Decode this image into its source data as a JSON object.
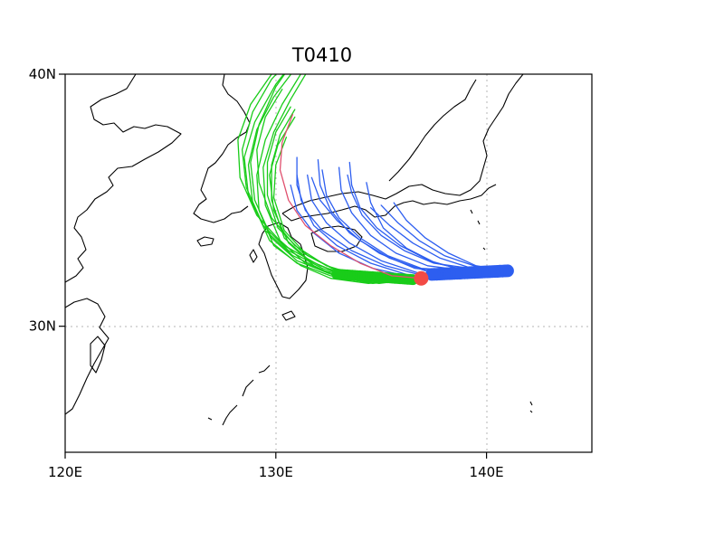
{
  "title": "T0410",
  "map": {
    "lon_range": [
      120,
      145
    ],
    "lat_range": [
      25,
      40
    ],
    "x_ticks": [
      {
        "value": 120,
        "label": "120E"
      },
      {
        "value": 130,
        "label": "130E"
      },
      {
        "value": 140,
        "label": "140E"
      }
    ],
    "y_ticks": [
      {
        "value": 30,
        "label": "30N"
      },
      {
        "value": 40,
        "label": "40N"
      }
    ],
    "gridlines": {
      "lon": [
        130,
        140
      ],
      "lat": [
        30
      ],
      "style": "dotted"
    }
  },
  "colors": {
    "ensemble_a": "#19cc19",
    "ensemble_b": "#2d5ef0",
    "best_track": "#e0506e",
    "start_marker": "#f24a45",
    "coast": "#000000"
  },
  "start_point": {
    "lon": 136.9,
    "lat": 31.9
  },
  "tracks": {
    "best_track": [
      [
        136.9,
        31.9
      ],
      [
        135.5,
        32.0
      ],
      [
        134.0,
        32.5
      ],
      [
        132.6,
        33.2
      ],
      [
        131.4,
        34.0
      ],
      [
        130.6,
        35.0
      ],
      [
        130.2,
        36.2
      ],
      [
        130.3,
        37.3
      ],
      [
        130.8,
        38.4
      ]
    ],
    "green": [
      [
        [
          136.9,
          31.9
        ],
        [
          134.5,
          31.8
        ],
        [
          132.5,
          32.1
        ],
        [
          131.0,
          32.6
        ],
        [
          129.8,
          33.5
        ],
        [
          129.0,
          35.0
        ],
        [
          128.8,
          36.5
        ],
        [
          129.2,
          38.0
        ],
        [
          130.0,
          39.5
        ],
        [
          131.0,
          40.7
        ]
      ],
      [
        [
          136.9,
          31.9
        ],
        [
          134.6,
          31.8
        ],
        [
          132.3,
          32.2
        ],
        [
          130.8,
          32.8
        ],
        [
          129.5,
          33.8
        ],
        [
          128.7,
          35.2
        ],
        [
          128.5,
          36.7
        ],
        [
          129.0,
          38.1
        ],
        [
          130.0,
          39.6
        ],
        [
          131.3,
          41.0
        ]
      ],
      [
        [
          136.9,
          31.9
        ],
        [
          134.4,
          31.7
        ],
        [
          132.6,
          31.9
        ],
        [
          131.2,
          32.4
        ],
        [
          129.9,
          33.2
        ],
        [
          129.2,
          34.6
        ],
        [
          129.1,
          36.0
        ],
        [
          129.5,
          37.4
        ],
        [
          130.3,
          38.8
        ],
        [
          131.4,
          40.3
        ]
      ],
      [
        [
          136.9,
          31.9
        ],
        [
          134.7,
          31.8
        ],
        [
          132.8,
          32.0
        ],
        [
          131.4,
          32.5
        ],
        [
          130.2,
          33.4
        ],
        [
          129.5,
          34.8
        ],
        [
          129.4,
          36.3
        ],
        [
          129.9,
          37.7
        ],
        [
          130.7,
          39.0
        ],
        [
          131.7,
          40.4
        ]
      ],
      [
        [
          136.9,
          31.9
        ],
        [
          134.8,
          31.8
        ],
        [
          133.0,
          32.1
        ],
        [
          131.6,
          32.6
        ],
        [
          130.4,
          33.5
        ],
        [
          129.8,
          35.0
        ],
        [
          129.8,
          36.4
        ],
        [
          130.2,
          37.6
        ],
        [
          130.9,
          38.6
        ]
      ],
      [
        [
          136.9,
          31.9
        ],
        [
          134.3,
          31.8
        ],
        [
          132.2,
          32.3
        ],
        [
          130.6,
          33.0
        ],
        [
          129.4,
          34.0
        ],
        [
          128.6,
          35.5
        ],
        [
          128.4,
          37.0
        ],
        [
          128.9,
          38.5
        ],
        [
          129.8,
          39.8
        ],
        [
          130.9,
          40.8
        ]
      ],
      [
        [
          136.9,
          31.9
        ],
        [
          134.6,
          31.7
        ],
        [
          132.6,
          32.0
        ],
        [
          131.0,
          32.5
        ],
        [
          129.7,
          33.4
        ],
        [
          128.9,
          34.9
        ],
        [
          128.7,
          36.4
        ],
        [
          129.1,
          37.8
        ],
        [
          129.9,
          39.1
        ],
        [
          130.9,
          40.2
        ]
      ],
      [
        [
          136.9,
          31.9
        ],
        [
          134.5,
          31.9
        ],
        [
          132.7,
          32.3
        ],
        [
          131.3,
          32.9
        ],
        [
          130.1,
          33.9
        ],
        [
          129.6,
          35.2
        ],
        [
          129.6,
          36.5
        ],
        [
          130.0,
          37.7
        ],
        [
          130.7,
          38.7
        ]
      ],
      [
        [
          136.9,
          31.9
        ],
        [
          134.2,
          31.8
        ],
        [
          132.1,
          32.4
        ],
        [
          130.4,
          33.2
        ],
        [
          129.1,
          34.4
        ],
        [
          128.3,
          35.9
        ],
        [
          128.2,
          37.4
        ],
        [
          128.8,
          38.8
        ],
        [
          129.8,
          40.0
        ]
      ],
      [
        [
          136.9,
          31.9
        ],
        [
          134.9,
          31.7
        ],
        [
          133.1,
          31.9
        ],
        [
          131.8,
          32.4
        ],
        [
          130.6,
          33.3
        ],
        [
          129.9,
          34.6
        ],
        [
          129.7,
          36.0
        ],
        [
          130.1,
          37.2
        ],
        [
          130.9,
          38.3
        ]
      ],
      [
        [
          136.9,
          31.9
        ],
        [
          134.4,
          31.9
        ],
        [
          132.4,
          32.4
        ],
        [
          130.9,
          33.2
        ],
        [
          129.8,
          34.3
        ],
        [
          129.2,
          35.7
        ],
        [
          129.1,
          37.0
        ],
        [
          129.5,
          38.3
        ],
        [
          130.3,
          39.4
        ]
      ],
      [
        [
          136.9,
          31.9
        ],
        [
          134.7,
          31.8
        ],
        [
          132.9,
          32.2
        ],
        [
          131.5,
          32.8
        ],
        [
          130.4,
          33.8
        ],
        [
          129.9,
          35.1
        ],
        [
          130.0,
          36.4
        ],
        [
          130.5,
          37.5
        ]
      ]
    ],
    "blue": [
      [
        [
          141.0,
          32.2
        ],
        [
          139.0,
          32.1
        ],
        [
          137.0,
          32.0
        ],
        [
          135.2,
          32.4
        ],
        [
          133.6,
          33.0
        ],
        [
          132.2,
          33.8
        ],
        [
          131.4,
          34.6
        ],
        [
          131.0,
          35.6
        ],
        [
          131.0,
          36.7
        ]
      ],
      [
        [
          141.0,
          32.2
        ],
        [
          138.8,
          32.1
        ],
        [
          136.8,
          32.1
        ],
        [
          135.0,
          32.6
        ],
        [
          133.5,
          33.3
        ],
        [
          132.4,
          34.1
        ],
        [
          131.7,
          35.0
        ],
        [
          131.5,
          36.0
        ]
      ],
      [
        [
          141.0,
          32.2
        ],
        [
          138.9,
          32.2
        ],
        [
          136.9,
          32.3
        ],
        [
          135.3,
          32.8
        ],
        [
          134.0,
          33.5
        ],
        [
          133.0,
          34.3
        ],
        [
          132.4,
          35.2
        ],
        [
          132.2,
          36.2
        ]
      ],
      [
        [
          141.0,
          32.2
        ],
        [
          139.1,
          32.2
        ],
        [
          137.2,
          32.4
        ],
        [
          135.7,
          32.9
        ],
        [
          134.5,
          33.6
        ],
        [
          133.6,
          34.5
        ],
        [
          133.1,
          35.4
        ],
        [
          133.0,
          36.3
        ]
      ],
      [
        [
          141.0,
          32.2
        ],
        [
          139.2,
          32.3
        ],
        [
          137.5,
          32.5
        ],
        [
          136.1,
          33.0
        ],
        [
          135.0,
          33.6
        ],
        [
          134.1,
          34.4
        ],
        [
          133.6,
          35.3
        ],
        [
          133.4,
          36.0
        ]
      ],
      [
        [
          141.0,
          32.2
        ],
        [
          139.0,
          32.2
        ],
        [
          137.3,
          32.6
        ],
        [
          135.9,
          33.2
        ],
        [
          134.8,
          33.9
        ],
        [
          134.0,
          34.7
        ],
        [
          133.6,
          35.6
        ],
        [
          133.5,
          36.5
        ]
      ],
      [
        [
          141.0,
          32.2
        ],
        [
          139.3,
          32.3
        ],
        [
          137.8,
          32.7
        ],
        [
          136.5,
          33.3
        ],
        [
          135.4,
          34.0
        ],
        [
          134.5,
          34.7
        ]
      ],
      [
        [
          141.0,
          32.2
        ],
        [
          138.7,
          32.1
        ],
        [
          136.6,
          32.3
        ],
        [
          134.9,
          32.9
        ],
        [
          133.5,
          33.7
        ],
        [
          132.6,
          34.6
        ],
        [
          132.1,
          35.6
        ],
        [
          132.0,
          36.6
        ]
      ],
      [
        [
          141.0,
          32.2
        ],
        [
          139.4,
          32.4
        ],
        [
          138.0,
          32.8
        ],
        [
          136.8,
          33.4
        ],
        [
          135.8,
          34.1
        ],
        [
          135.0,
          34.8
        ]
      ],
      [
        [
          141.0,
          32.2
        ],
        [
          138.9,
          32.0
        ],
        [
          136.7,
          31.9
        ],
        [
          134.6,
          32.3
        ],
        [
          133.0,
          32.9
        ],
        [
          131.8,
          33.7
        ],
        [
          131.0,
          34.6
        ],
        [
          130.7,
          35.6
        ]
      ],
      [
        [
          141.0,
          32.2
        ],
        [
          139.2,
          32.2
        ],
        [
          137.6,
          32.5
        ],
        [
          136.2,
          33.1
        ],
        [
          135.1,
          33.9
        ],
        [
          134.5,
          34.9
        ],
        [
          134.3,
          35.7
        ]
      ],
      [
        [
          141.0,
          32.2
        ],
        [
          139.1,
          32.1
        ],
        [
          137.1,
          32.2
        ],
        [
          135.4,
          32.7
        ],
        [
          134.0,
          33.4
        ],
        [
          132.9,
          34.2
        ],
        [
          132.1,
          35.0
        ],
        [
          131.7,
          35.9
        ]
      ],
      [
        [
          141.0,
          32.2
        ],
        [
          139.5,
          32.4
        ],
        [
          138.2,
          32.9
        ],
        [
          137.1,
          33.5
        ],
        [
          136.2,
          34.2
        ],
        [
          135.6,
          34.9
        ]
      ],
      [
        [
          141.0,
          32.2
        ],
        [
          138.6,
          32.0
        ],
        [
          136.4,
          32.0
        ],
        [
          134.5,
          32.5
        ],
        [
          132.9,
          33.2
        ],
        [
          131.8,
          34.0
        ],
        [
          131.2,
          35.0
        ],
        [
          131.0,
          36.0
        ]
      ]
    ]
  }
}
